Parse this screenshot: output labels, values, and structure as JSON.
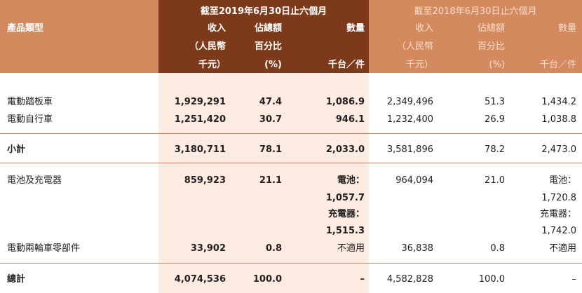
{
  "header": {
    "category_label": "產品類型",
    "period_2019": "截至2019年6月30日止六個月",
    "period_2018": "截至2018年6月30日止六個月",
    "revenue_lines": [
      "收入",
      "（人民幣",
      "千元）"
    ],
    "pct_lines": [
      "佔總額",
      "百分比",
      "(%)"
    ],
    "qty_lines": [
      "數量",
      "千台／件"
    ]
  },
  "rows": [
    {
      "label": "電動踏板車",
      "rev_2019": "1,929,291",
      "pct_2019": "47.4",
      "qty_2019": "1,086.9",
      "rev_2018": "2,349,496",
      "pct_2018": "51.3",
      "qty_2018": "1,434.2"
    },
    {
      "label": "電動自行車",
      "rev_2019": "1,251,420",
      "pct_2019": "30.7",
      "qty_2019": "946.1",
      "rev_2018": "1,232,400",
      "pct_2018": "26.9",
      "qty_2018": "1,038.8"
    },
    {
      "label": "小計",
      "rev_2019": "3,180,711",
      "pct_2019": "78.1",
      "qty_2019": "2,033.0",
      "rev_2018": "3,581,896",
      "pct_2018": "78.2",
      "qty_2018": "2,473.0"
    },
    {
      "label": "電池及充電器",
      "rev_2019": "859,923",
      "pct_2019": "21.1",
      "qty_2019": [
        "電池：",
        "1,057.7",
        "充電器：",
        "1,515.3"
      ],
      "rev_2018": "964,094",
      "pct_2018": "21.0",
      "qty_2018": [
        "電池：",
        "1,720.8",
        "充電器：",
        "1,742.0"
      ]
    },
    {
      "label": "電動兩輪車零部件",
      "rev_2019": "33,902",
      "pct_2019": "0.8",
      "qty_2019": "不適用",
      "rev_2018": "36,838",
      "pct_2018": "0.8",
      "qty_2018": "不適用"
    },
    {
      "label": "總計",
      "rev_2019": "4,074,536",
      "pct_2019": "100.0",
      "qty_2019": "–",
      "rev_2018": "4,582,828",
      "pct_2018": "100.0",
      "qty_2018": "–"
    }
  ],
  "colors": {
    "header_light": "#d48a5e",
    "header_dark": "#7d3a1b",
    "band_2019": "#fbebe0",
    "rule": "#c98a63"
  }
}
